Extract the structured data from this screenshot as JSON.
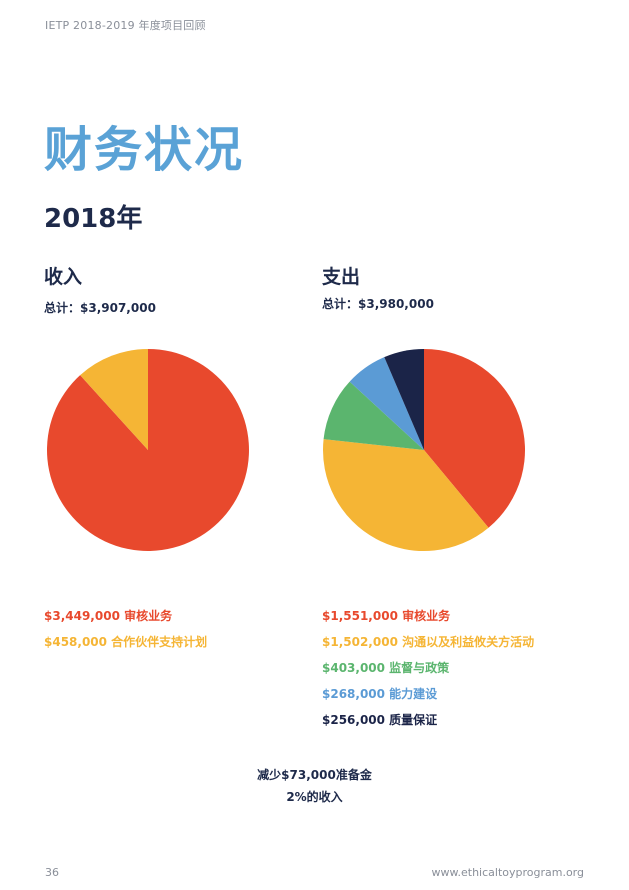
{
  "header": {
    "text": "IETP 2018-2019 年度项目回顾"
  },
  "title": "财务状况",
  "year": "2018年",
  "chart_data": [
    {
      "type": "pie",
      "title": "收入",
      "subtitle": "总计：$3,907,000",
      "slices": [
        {
          "value": 3449000,
          "label": "$3,449,000 审核业务",
          "color": "#e8492d"
        },
        {
          "value": 458000,
          "label": "$458,000 合作伙伴支持计划",
          "color": "#f5b535"
        }
      ]
    },
    {
      "type": "pie",
      "title": "支出",
      "subtitle": "总计：$3,980,000",
      "slices": [
        {
          "value": 1551000,
          "label": "$1,551,000 审核业务",
          "color": "#e8492d"
        },
        {
          "value": 1502000,
          "label": "$1,502,000 沟通以及利益攸关方活动",
          "color": "#f5b535"
        },
        {
          "value": 403000,
          "label": "$403,000 监督与政策",
          "color": "#5bb56e"
        },
        {
          "value": 268000,
          "label": "$268,000 能力建设",
          "color": "#5b9bd5"
        },
        {
          "value": 256000,
          "label": "$256,000 质量保证",
          "color": "#1b2448"
        }
      ]
    }
  ],
  "note": {
    "line1": "减少$73,000准备金",
    "line2": "2%的收入"
  },
  "footer": {
    "page": "36",
    "url": "www.ethicaltoyprogram.org"
  }
}
